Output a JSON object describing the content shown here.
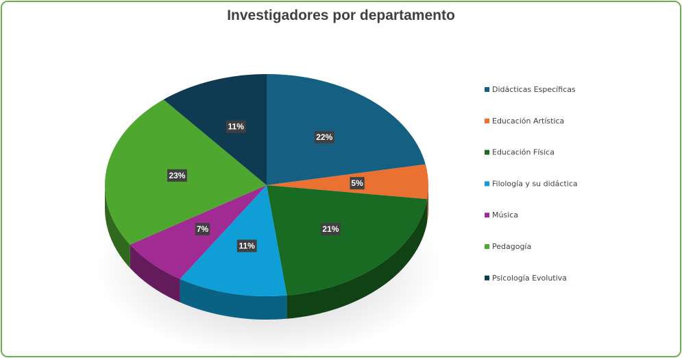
{
  "chart_data": {
    "type": "pie",
    "title": "Investigadores por departamento",
    "categories": [
      "Didácticas Específicas",
      "Educación Artística",
      "Educación Física",
      "Filología y su didáctica",
      "Música",
      "Pedagogía",
      "Psicología Evolutiva"
    ],
    "values": [
      22,
      5,
      21,
      11,
      7,
      23,
      11
    ],
    "data_labels": [
      "22%",
      "5%",
      "21%",
      "11%",
      "7%",
      "23%",
      "11%"
    ],
    "colors": [
      "#156082",
      "#e97132",
      "#196b24",
      "#0f9ed5",
      "#a02b93",
      "#4ea72e",
      "#0e3a52"
    ],
    "style": "3d-pie",
    "legend_position": "right"
  }
}
